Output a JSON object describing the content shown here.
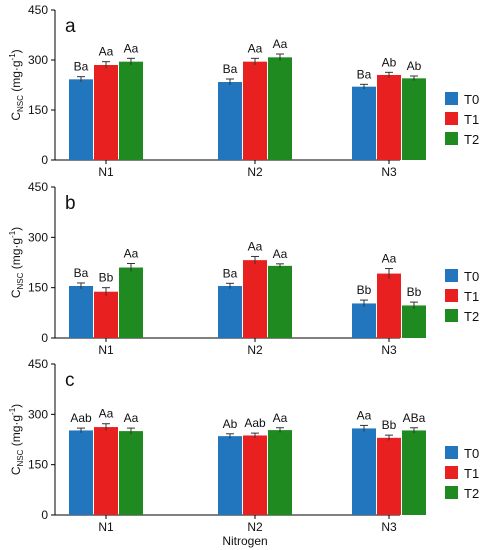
{
  "colors": {
    "T0": "#2176bd",
    "T1": "#e8201f",
    "T2": "#1f8a1f",
    "axis": "#000000",
    "errorbar": "#333333"
  },
  "shared": {
    "xlabel": "Nitrogen",
    "legend_placement": "right"
  },
  "chart_data": [
    {
      "type": "bar",
      "panel_label": "a",
      "ylabel_main": "C",
      "ylabel_sub": "NSC",
      "ylabel_unit_prefix": " (mg·g",
      "ylabel_unit_sup": "-1",
      "ylabel_unit_suffix": ")",
      "ylim": [
        0,
        450
      ],
      "yticks": [
        0,
        150,
        300,
        450
      ],
      "categories": [
        "N1",
        "N2",
        "N3"
      ],
      "series": [
        {
          "name": "T0",
          "values": [
            242,
            234,
            220
          ],
          "errors": [
            8,
            9,
            7
          ],
          "labels": [
            "Ba",
            "Ba",
            "Ba"
          ]
        },
        {
          "name": "T1",
          "values": [
            285,
            295,
            255
          ],
          "errors": [
            10,
            10,
            8
          ],
          "labels": [
            "Aa",
            "Aa",
            "Ab"
          ]
        },
        {
          "name": "T2",
          "values": [
            295,
            308,
            245
          ],
          "errors": [
            10,
            10,
            7
          ],
          "labels": [
            "Aa",
            "Aa",
            "Ab"
          ]
        }
      ],
      "legend": [
        "T0",
        "T1",
        "T2"
      ]
    },
    {
      "type": "bar",
      "panel_label": "b",
      "ylabel_main": "C",
      "ylabel_sub": "NSC",
      "ylabel_unit_prefix": " (mg·g",
      "ylabel_unit_sup": "-1",
      "ylabel_unit_suffix": ")",
      "ylim": [
        0,
        450
      ],
      "yticks": [
        0,
        150,
        300,
        450
      ],
      "categories": [
        "N1",
        "N2",
        "N3"
      ],
      "series": [
        {
          "name": "T0",
          "values": [
            155,
            155,
            103
          ],
          "errors": [
            9,
            8,
            10
          ],
          "labels": [
            "Ba",
            "Ba",
            "Bb"
          ]
        },
        {
          "name": "T1",
          "values": [
            138,
            232,
            192
          ],
          "errors": [
            12,
            11,
            15
          ],
          "labels": [
            "Bb",
            "Aa",
            "Aa"
          ]
        },
        {
          "name": "T2",
          "values": [
            210,
            215,
            97
          ],
          "errors": [
            12,
            6,
            10
          ],
          "labels": [
            "Aa",
            "Aa",
            "Bb"
          ]
        }
      ],
      "legend": [
        "T0",
        "T1",
        "T2"
      ]
    },
    {
      "type": "bar",
      "panel_label": "c",
      "ylabel_main": "C",
      "ylabel_sub": "NSC",
      "ylabel_unit_prefix": " (mg·g",
      "ylabel_unit_sup": "-1",
      "ylabel_unit_suffix": ")",
      "ylim": [
        0,
        450
      ],
      "yticks": [
        0,
        150,
        300,
        450
      ],
      "categories": [
        "N1",
        "N2",
        "N3"
      ],
      "series": [
        {
          "name": "T0",
          "values": [
            252,
            235,
            258
          ],
          "errors": [
            7,
            7,
            9
          ],
          "labels": [
            "Aab",
            "Ab",
            "Aa"
          ]
        },
        {
          "name": "T1",
          "values": [
            262,
            237,
            230
          ],
          "errors": [
            10,
            7,
            8
          ],
          "labels": [
            "Aa",
            "Aab",
            "Bb"
          ]
        },
        {
          "name": "T2",
          "values": [
            250,
            253,
            252
          ],
          "errors": [
            9,
            7,
            8
          ],
          "labels": [
            "Aa",
            "Aa",
            "ABa"
          ]
        }
      ],
      "legend": [
        "T0",
        "T1",
        "T2"
      ]
    }
  ]
}
